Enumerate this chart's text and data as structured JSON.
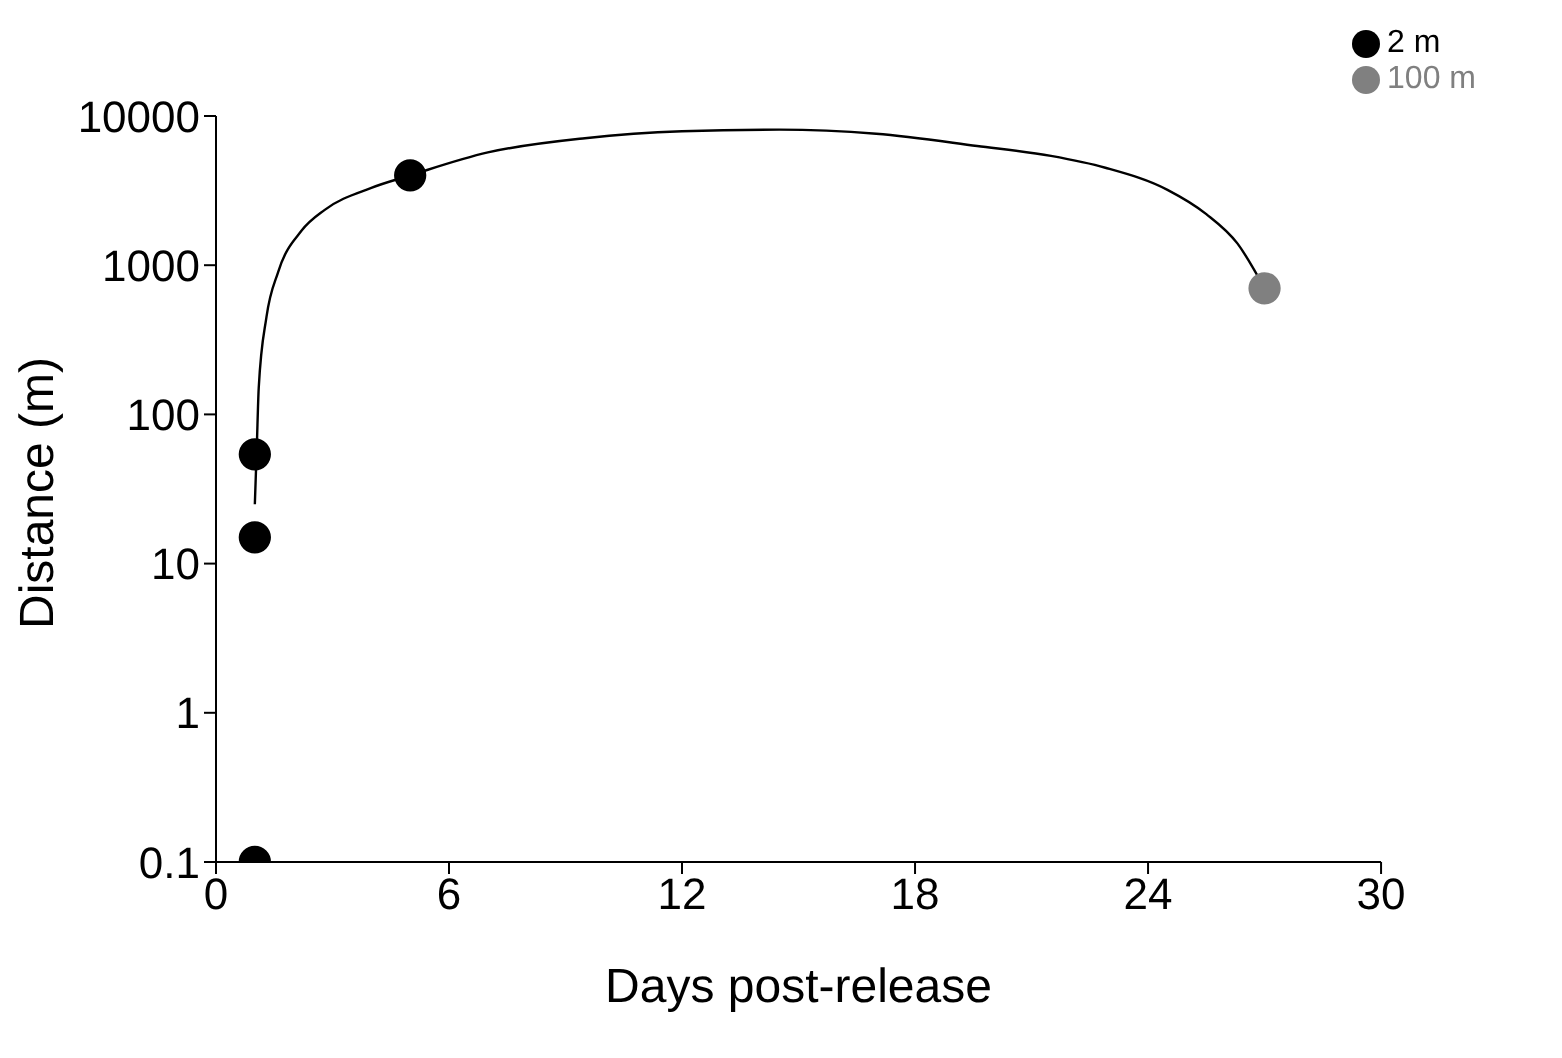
{
  "chart_data": {
    "type": "scatter",
    "xlabel": "Days post-release",
    "ylabel": "Distance (m)",
    "log": "y",
    "xlim": [
      0,
      30
    ],
    "xticks": [
      0,
      6,
      12,
      18,
      24,
      30
    ],
    "ylim": [
      0.1,
      10000
    ],
    "yticks": [
      0.1,
      1,
      10,
      100,
      1000,
      10000
    ],
    "grid": false,
    "legend": "top right",
    "marker": "circle",
    "series": [
      {
        "type": "line",
        "marker": "none",
        "color": "#000000",
        "x": [
          1,
          1.05,
          1.1,
          1.3,
          1.6,
          2.2,
          2.8,
          4,
          5,
          7,
          9.5,
          12,
          14.5,
          17,
          19.6,
          21.5,
          22.9,
          24.5,
          25.5,
          26.3,
          27
        ],
        "values": [
          25,
          60,
          150,
          450,
          900,
          1700,
          2350,
          3300,
          4000,
          5700,
          7100,
          7900,
          8100,
          7600,
          6300,
          5400,
          4500,
          3200,
          2200,
          1400,
          700
        ]
      },
      {
        "name": "2 m",
        "color": "#000000",
        "x": [
          1,
          1,
          1,
          5
        ],
        "values": [
          0.1,
          15,
          54,
          4000
        ]
      },
      {
        "name": "100 m",
        "color": "#808080",
        "x": [
          27
        ],
        "values": [
          700
        ]
      }
    ]
  }
}
